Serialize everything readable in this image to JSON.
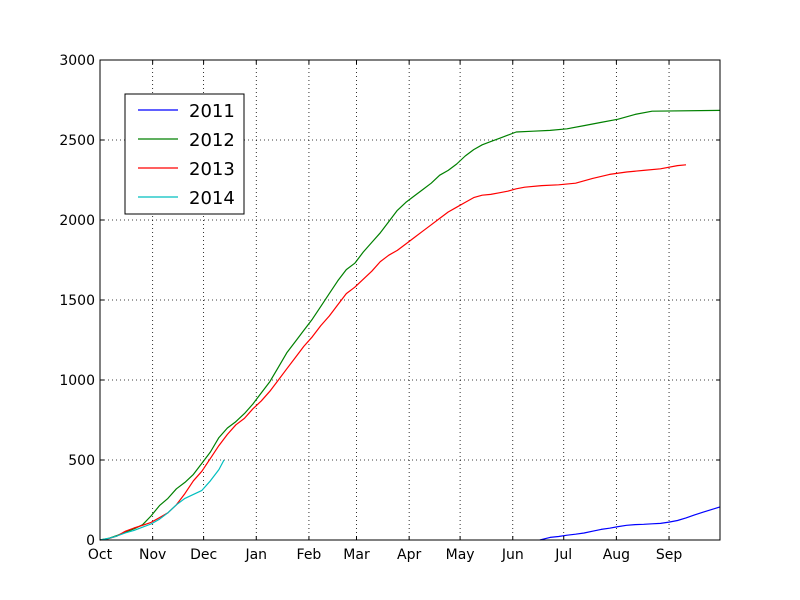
{
  "chart_data": {
    "type": "line",
    "title": "",
    "xlabel": "",
    "ylabel": "",
    "x_tick_labels": [
      "Oct",
      "Nov",
      "Dec",
      "Jan",
      "Feb",
      "Mar",
      "Apr",
      "May",
      "Jun",
      "Jul",
      "Aug",
      "Sep"
    ],
    "y_ticks": [
      0,
      500,
      1000,
      1500,
      2000,
      2500,
      3000
    ],
    "ylim": [
      0,
      3000
    ],
    "x_axis": "day of season, starting Oct 1 (0) through end of Sep (365)",
    "xlim": [
      0,
      365
    ],
    "grid": true,
    "legend": "upper left",
    "series": [
      {
        "name": "2011",
        "color": "#0000ff",
        "points": [
          [
            259,
            0
          ],
          [
            262,
            8
          ],
          [
            265,
            16
          ],
          [
            270,
            22
          ],
          [
            275,
            30
          ],
          [
            280,
            36
          ],
          [
            285,
            44
          ],
          [
            290,
            55
          ],
          [
            295,
            66
          ],
          [
            300,
            74
          ],
          [
            305,
            84
          ],
          [
            310,
            92
          ],
          [
            315,
            96
          ],
          [
            320,
            98
          ],
          [
            325,
            101
          ],
          [
            330,
            104
          ],
          [
            335,
            112
          ],
          [
            340,
            122
          ],
          [
            345,
            138
          ],
          [
            350,
            157
          ],
          [
            355,
            174
          ],
          [
            360,
            190
          ],
          [
            365,
            207
          ]
        ]
      },
      {
        "name": "2012",
        "color": "#008000",
        "points": [
          [
            0,
            0
          ],
          [
            5,
            10
          ],
          [
            10,
            28
          ],
          [
            15,
            50
          ],
          [
            20,
            70
          ],
          [
            25,
            95
          ],
          [
            30,
            150
          ],
          [
            35,
            215
          ],
          [
            40,
            260
          ],
          [
            45,
            320
          ],
          [
            50,
            360
          ],
          [
            55,
            410
          ],
          [
            60,
            480
          ],
          [
            65,
            550
          ],
          [
            70,
            640
          ],
          [
            75,
            700
          ],
          [
            80,
            740
          ],
          [
            85,
            790
          ],
          [
            90,
            850
          ],
          [
            95,
            920
          ],
          [
            100,
            990
          ],
          [
            105,
            1080
          ],
          [
            110,
            1170
          ],
          [
            115,
            1240
          ],
          [
            120,
            1310
          ],
          [
            125,
            1380
          ],
          [
            130,
            1460
          ],
          [
            135,
            1540
          ],
          [
            140,
            1620
          ],
          [
            145,
            1690
          ],
          [
            150,
            1730
          ],
          [
            155,
            1800
          ],
          [
            160,
            1860
          ],
          [
            165,
            1920
          ],
          [
            170,
            1990
          ],
          [
            175,
            2060
          ],
          [
            180,
            2110
          ],
          [
            185,
            2150
          ],
          [
            190,
            2190
          ],
          [
            195,
            2230
          ],
          [
            200,
            2280
          ],
          [
            205,
            2310
          ],
          [
            210,
            2350
          ],
          [
            215,
            2400
          ],
          [
            220,
            2440
          ],
          [
            225,
            2470
          ],
          [
            230,
            2490
          ],
          [
            235,
            2510
          ],
          [
            240,
            2530
          ],
          [
            245,
            2550
          ],
          [
            255,
            2555
          ],
          [
            265,
            2560
          ],
          [
            275,
            2570
          ],
          [
            285,
            2590
          ],
          [
            295,
            2610
          ],
          [
            305,
            2630
          ],
          [
            315,
            2660
          ],
          [
            325,
            2680
          ],
          [
            365,
            2685
          ]
        ]
      },
      {
        "name": "2013",
        "color": "#ff0000",
        "points": [
          [
            0,
            0
          ],
          [
            5,
            8
          ],
          [
            10,
            25
          ],
          [
            15,
            55
          ],
          [
            20,
            75
          ],
          [
            25,
            92
          ],
          [
            30,
            110
          ],
          [
            35,
            140
          ],
          [
            40,
            170
          ],
          [
            45,
            220
          ],
          [
            50,
            290
          ],
          [
            55,
            370
          ],
          [
            60,
            430
          ],
          [
            65,
            510
          ],
          [
            70,
            590
          ],
          [
            75,
            660
          ],
          [
            80,
            720
          ],
          [
            85,
            760
          ],
          [
            90,
            820
          ],
          [
            95,
            870
          ],
          [
            100,
            930
          ],
          [
            105,
            1000
          ],
          [
            110,
            1070
          ],
          [
            115,
            1140
          ],
          [
            120,
            1210
          ],
          [
            125,
            1270
          ],
          [
            130,
            1340
          ],
          [
            135,
            1400
          ],
          [
            140,
            1470
          ],
          [
            145,
            1540
          ],
          [
            150,
            1580
          ],
          [
            155,
            1630
          ],
          [
            160,
            1680
          ],
          [
            165,
            1740
          ],
          [
            170,
            1780
          ],
          [
            175,
            1810
          ],
          [
            180,
            1850
          ],
          [
            185,
            1890
          ],
          [
            190,
            1930
          ],
          [
            195,
            1970
          ],
          [
            200,
            2010
          ],
          [
            205,
            2050
          ],
          [
            210,
            2080
          ],
          [
            215,
            2110
          ],
          [
            220,
            2140
          ],
          [
            225,
            2155
          ],
          [
            230,
            2160
          ],
          [
            235,
            2170
          ],
          [
            240,
            2180
          ],
          [
            245,
            2195
          ],
          [
            250,
            2205
          ],
          [
            260,
            2215
          ],
          [
            270,
            2220
          ],
          [
            280,
            2230
          ],
          [
            290,
            2260
          ],
          [
            300,
            2285
          ],
          [
            310,
            2300
          ],
          [
            320,
            2310
          ],
          [
            330,
            2320
          ],
          [
            340,
            2340
          ],
          [
            345,
            2345
          ]
        ]
      },
      {
        "name": "2014",
        "color": "#00bfbf",
        "points": [
          [
            0,
            0
          ],
          [
            5,
            10
          ],
          [
            10,
            25
          ],
          [
            15,
            45
          ],
          [
            20,
            60
          ],
          [
            25,
            80
          ],
          [
            30,
            100
          ],
          [
            35,
            130
          ],
          [
            40,
            170
          ],
          [
            45,
            220
          ],
          [
            50,
            260
          ],
          [
            55,
            285
          ],
          [
            60,
            310
          ],
          [
            65,
            370
          ],
          [
            70,
            440
          ],
          [
            73,
            500
          ]
        ]
      }
    ]
  }
}
